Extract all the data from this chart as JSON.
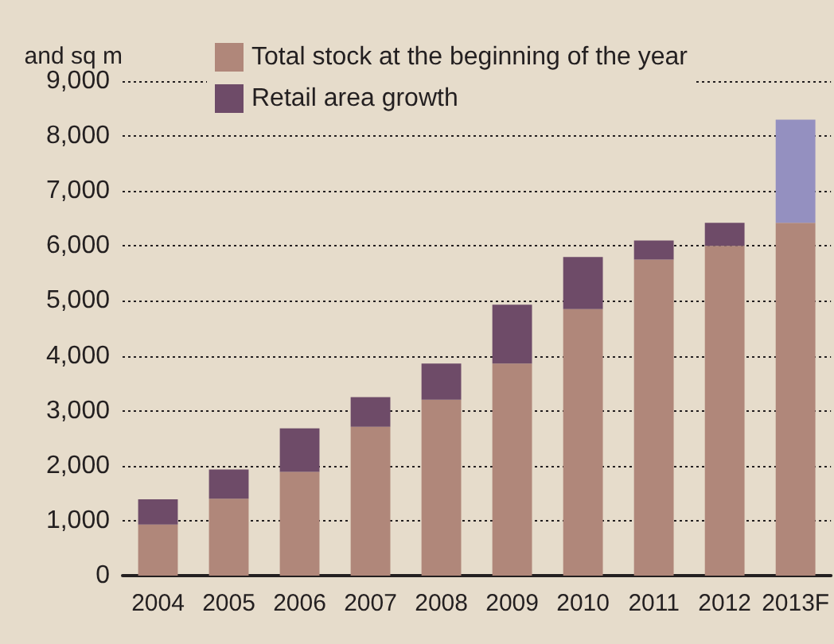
{
  "chart_data": {
    "type": "bar",
    "stacked": true,
    "ylabel": "and sq m",
    "categories": [
      "2004",
      "2005",
      "2006",
      "2007",
      "2008",
      "2009",
      "2010",
      "2011",
      "2012",
      "2013F"
    ],
    "series": [
      {
        "name": "Total stock at the beginning of the year",
        "color": "#b0877a",
        "values": [
          930,
          1400,
          1890,
          2710,
          3200,
          3860,
          4850,
          5750,
          6000,
          6420
        ]
      },
      {
        "name": "Retail area growth",
        "color": "#6e4b68",
        "colors": [
          "#6e4b68",
          "#6e4b68",
          "#6e4b68",
          "#6e4b68",
          "#6e4b68",
          "#6e4b68",
          "#6e4b68",
          "#6e4b68",
          "#6e4b68",
          "#9490c0"
        ],
        "values": [
          460,
          530,
          790,
          540,
          660,
          1070,
          950,
          350,
          420,
          1880
        ]
      }
    ],
    "ylim": [
      0,
      9000
    ],
    "yticks": [
      0,
      {
        "value": 1000,
        "label": "1,000"
      },
      {
        "value": 2000,
        "label": "2,000"
      },
      {
        "value": 3000,
        "label": "3,000"
      },
      {
        "value": 4000,
        "label": "4,000"
      },
      {
        "value": 5000,
        "label": "5,000"
      },
      {
        "value": 6000,
        "label": "6,000"
      },
      {
        "value": 7000,
        "label": "7,000"
      },
      {
        "value": 8000,
        "label": "8,000"
      },
      {
        "value": 9000,
        "label": "9,000"
      }
    ],
    "grid": "y",
    "legend": "top left"
  }
}
